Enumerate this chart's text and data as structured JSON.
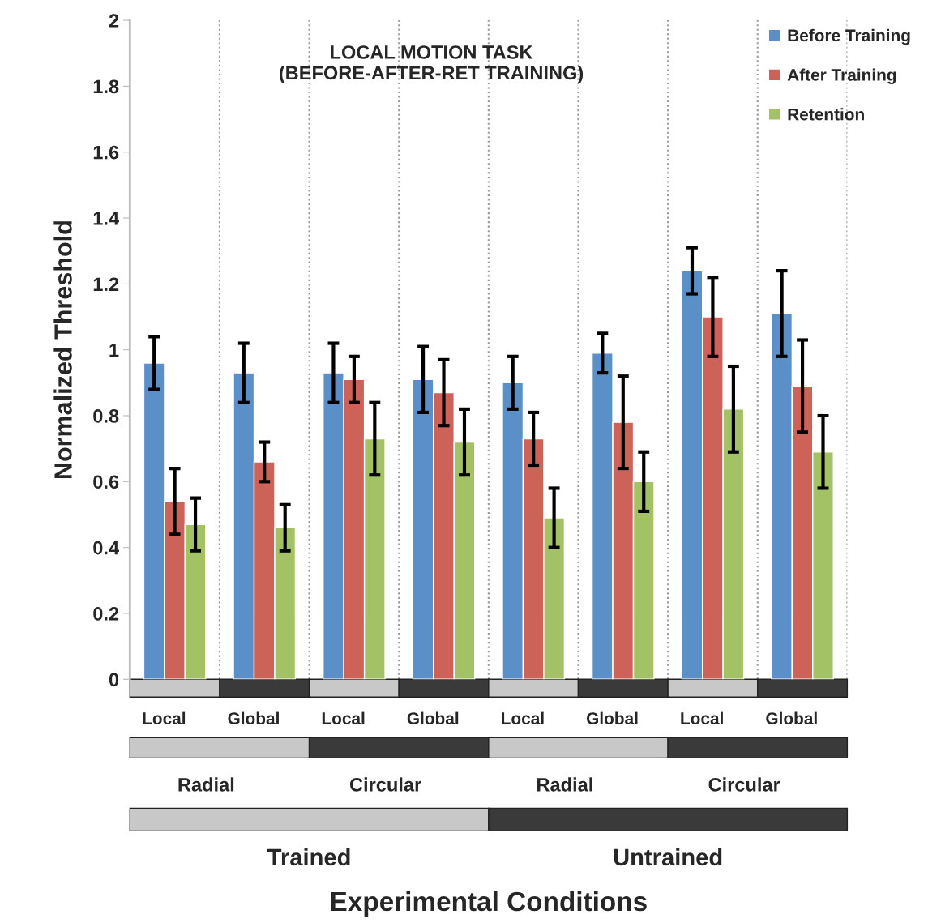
{
  "chart_data": {
    "type": "bar",
    "title": "LOCAL MOTION TASK\n(BEFORE-AFTER-RET TRAINING)",
    "ylabel": "Normalized Threshold",
    "categories": [
      "Local",
      "Global",
      "Local",
      "Global",
      "Local",
      "Global",
      "Local",
      "Global"
    ],
    "series": [
      {
        "name": "Before Training",
        "color": "#5b8fc7",
        "values": [
          0.96,
          0.93,
          0.93,
          0.91,
          0.9,
          0.99,
          1.24,
          1.11
        ],
        "errors": [
          0.08,
          0.09,
          0.09,
          0.1,
          0.08,
          0.06,
          0.07,
          0.13
        ]
      },
      {
        "name": "After Training",
        "color": "#cd6259",
        "values": [
          0.54,
          0.66,
          0.91,
          0.87,
          0.73,
          0.78,
          1.1,
          0.89
        ],
        "errors": [
          0.1,
          0.06,
          0.07,
          0.1,
          0.08,
          0.14,
          0.12,
          0.14
        ]
      },
      {
        "name": "Retention",
        "color": "#a3c165",
        "values": [
          0.47,
          0.46,
          0.73,
          0.72,
          0.49,
          0.6,
          0.82,
          0.69
        ],
        "errors": [
          0.08,
          0.07,
          0.11,
          0.1,
          0.09,
          0.09,
          0.13,
          0.11
        ]
      }
    ],
    "annotations": [
      "Radial",
      "Circular",
      "Radial",
      "Circular",
      "Trained",
      "Untrained",
      "Experimental Conditions"
    ],
    "ylim": [
      0,
      2
    ],
    "yticks": [
      0,
      0.2,
      0.4,
      0.6,
      0.8,
      1,
      1.2,
      1.4,
      1.6,
      1.8,
      2
    ],
    "grid": "x",
    "legend": "top right"
  }
}
